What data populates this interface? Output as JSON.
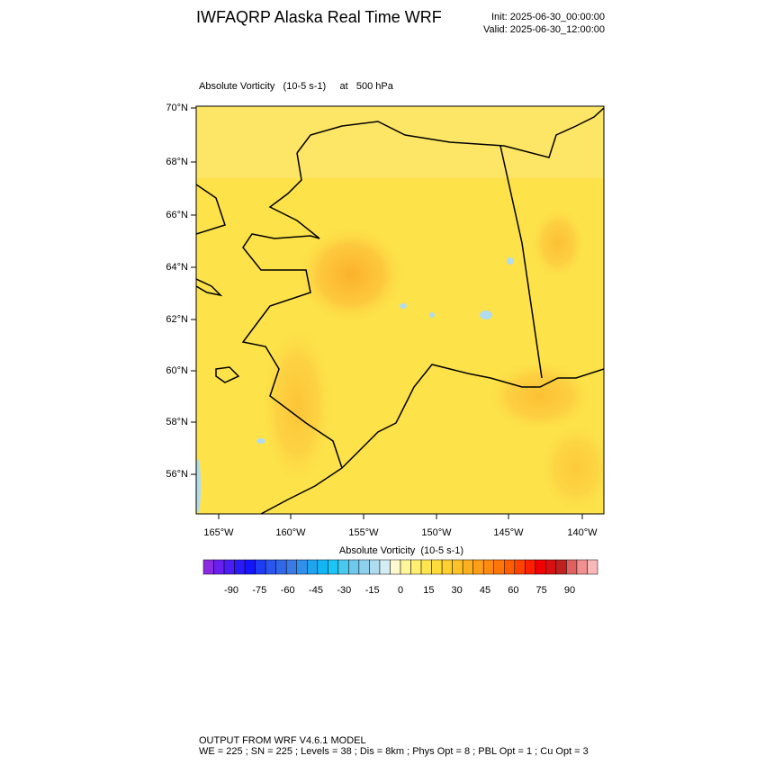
{
  "header": {
    "title": "IWFAQRP Alaska Real Time WRF",
    "init": "Init: 2025-06-30_00:00:00",
    "valid": "Valid: 2025-06-30_12:00:00"
  },
  "map": {
    "subtitle": "Absolute Vorticity   (10-5 s-1)     at   500 hPa",
    "lat_labels": [
      "70°N",
      "68°N",
      "66°N",
      "64°N",
      "62°N",
      "60°N",
      "58°N",
      "56°N"
    ],
    "lon_labels": [
      "165°W",
      "160°W",
      "155°W",
      "150°W",
      "145°W",
      "140°W"
    ]
  },
  "colorbar": {
    "title": "Absolute Vorticity  (10-5 s-1)",
    "labels": [
      -90,
      -75,
      -60,
      -45,
      -30,
      -15,
      0,
      15,
      30,
      45,
      60,
      75,
      90
    ],
    "colors": [
      "#8a2be2",
      "#6a1ff0",
      "#4b1cf5",
      "#2a1af8",
      "#1414ff",
      "#1f3cf5",
      "#2a55ee",
      "#3068e8",
      "#3a7ae5",
      "#2f8fea",
      "#1fa5f0",
      "#14b5f5",
      "#1ec4f5",
      "#47c9f0",
      "#6dc8ec",
      "#8fd0ee",
      "#b0dcf0",
      "#d4ecf4",
      "#fffbd0",
      "#fff59a",
      "#ffee70",
      "#ffe550",
      "#ffdc3a",
      "#ffd030",
      "#ffc228",
      "#ffb020",
      "#ff9e18",
      "#ff8a10",
      "#ff7508",
      "#ff5e00",
      "#ff4200",
      "#ff2000",
      "#f00000",
      "#d81010",
      "#c02020",
      "#e06060",
      "#f09090",
      "#f8b8b8"
    ]
  },
  "footer": {
    "line1": "OUTPUT FROM WRF V4.6.1 MODEL",
    "line2": "WE = 225 ; SN = 225 ; Levels = 38 ; Dis = 8km ; Phys Opt = 8 ; PBL Opt = 1 ; Cu Opt = 3"
  }
}
